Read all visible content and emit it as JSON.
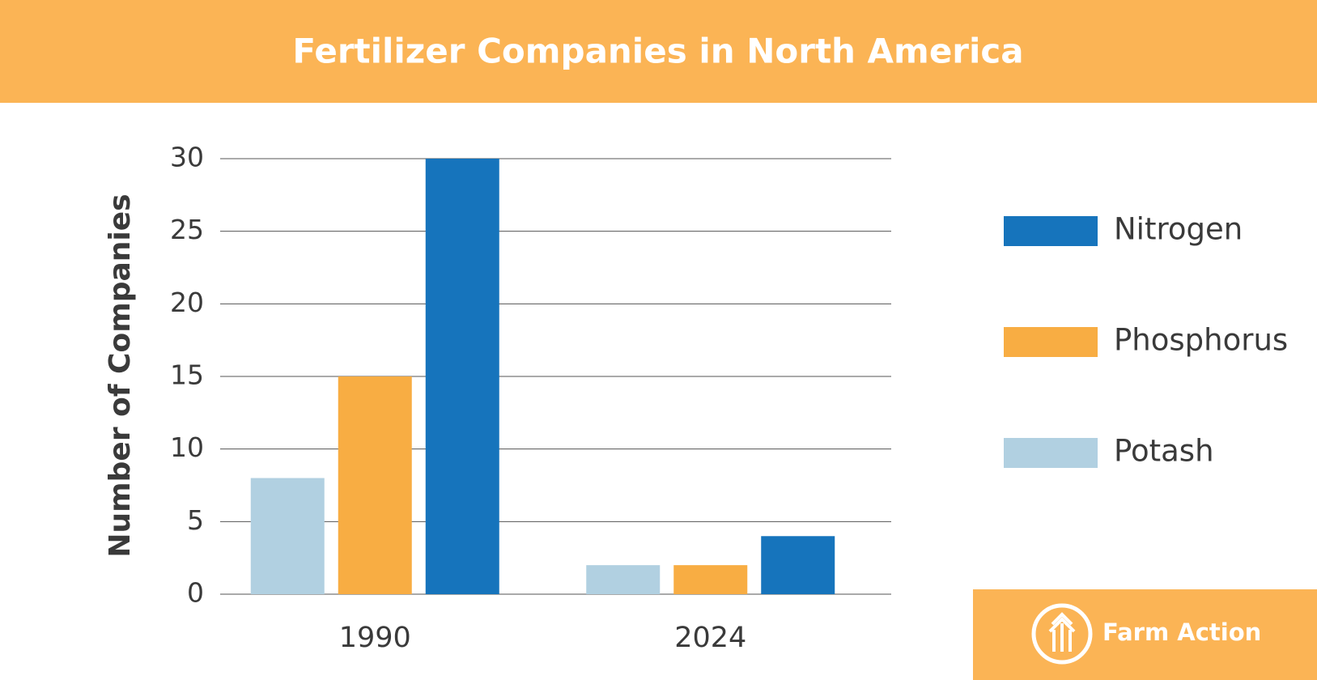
{
  "chart_data": {
    "type": "bar",
    "title": "Fertilizer Companies in North America",
    "ylabel": "Number of Companies",
    "categories": [
      "1990",
      "2024"
    ],
    "series": [
      {
        "name": "Nitrogen",
        "color": "#1674bc",
        "values": [
          30,
          4
        ]
      },
      {
        "name": "Phosphorus",
        "color": "#f8ad43",
        "values": [
          15,
          2
        ]
      },
      {
        "name": "Potash",
        "color": "#b1d0e1",
        "values": [
          8,
          2
        ]
      }
    ],
    "ylim": [
      0,
      30
    ],
    "yticks": [
      0,
      5,
      10,
      15,
      20,
      25,
      30
    ],
    "grid": true,
    "legend": "right"
  },
  "brand": "Farm Action"
}
